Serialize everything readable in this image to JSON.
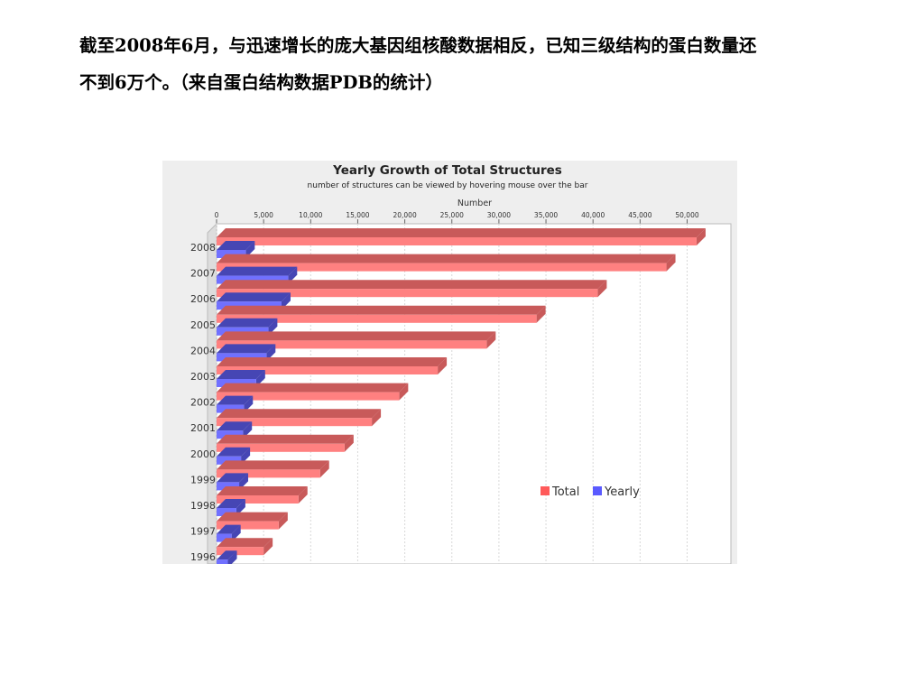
{
  "caption": {
    "line1": "截至2008年6月，与迅速增长的庞大基因组核酸数据相反，已知三级结构的蛋白数量还",
    "line2": "不到6万个。（来自蛋白结构数据PDB的统计）"
  },
  "colors": {
    "total": "#ff8080",
    "total_dark": "#c85a5a",
    "yearly": "#7070ff",
    "yearly_dark": "#4646b4",
    "background": "#eeeeee"
  },
  "chart_data": {
    "type": "bar",
    "orientation": "horizontal",
    "title": "Yearly Growth of Total Structures",
    "subtitle": "number of structures can be viewed by hovering mouse over the bar",
    "xlabel": "Number",
    "xlim": [
      0,
      52000
    ],
    "xticks": [
      "0",
      "5,000",
      "10,000",
      "15,000",
      "20,000",
      "25,000",
      "30,000",
      "35,000",
      "40,000",
      "45,000",
      "50,000"
    ],
    "grid": true,
    "legend_position": "bottom-right",
    "categories": [
      "2008",
      "2007",
      "2006",
      "2005",
      "2004",
      "2003",
      "2002",
      "2001",
      "2000",
      "1999",
      "1998",
      "1997",
      "1996"
    ],
    "series": [
      {
        "name": "Total",
        "values": [
          51000,
          47800,
          40500,
          34000,
          28700,
          23500,
          19400,
          16500,
          13600,
          11000,
          8700,
          6600,
          5000
        ]
      },
      {
        "name": "Yearly",
        "values": [
          3100,
          7600,
          6900,
          5500,
          5300,
          4200,
          2900,
          2800,
          2600,
          2400,
          2100,
          1600,
          1200
        ]
      }
    ]
  }
}
